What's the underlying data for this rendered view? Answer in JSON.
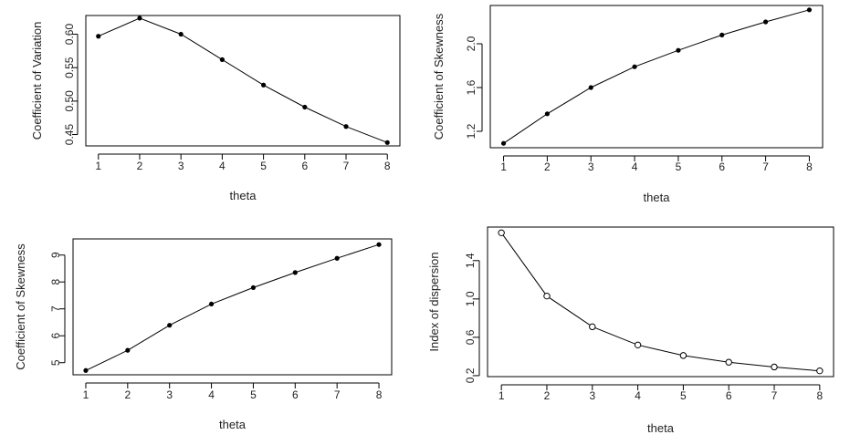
{
  "chart_data": [
    {
      "type": "line",
      "marker": "filled-dot",
      "xlabel": "theta",
      "ylabel": "Coefficient of Variation",
      "x": [
        1,
        2,
        3,
        4,
        5,
        6,
        7,
        8
      ],
      "values": [
        0.597,
        0.624,
        0.6,
        0.562,
        0.524,
        0.491,
        0.462,
        0.438
      ],
      "ylim": [
        0.433,
        0.628
      ],
      "xticks": [
        1,
        2,
        3,
        4,
        5,
        6,
        7,
        8
      ],
      "yticks": [
        0.45,
        0.5,
        0.55,
        0.6
      ],
      "ytick_labels": [
        "0.45",
        "0.50",
        "0.55",
        "0.60"
      ],
      "grid": false
    },
    {
      "type": "line",
      "marker": "filled-dot",
      "xlabel": "theta",
      "ylabel": "Coefficient of Skewness",
      "x": [
        1,
        2,
        3,
        4,
        5,
        6,
        7,
        8
      ],
      "values": [
        1.09,
        1.36,
        1.6,
        1.79,
        1.94,
        2.08,
        2.2,
        2.31
      ],
      "ylim": [
        1.05,
        2.35
      ],
      "xticks": [
        1,
        2,
        3,
        4,
        5,
        6,
        7,
        8
      ],
      "yticks": [
        1.2,
        1.6,
        2.0
      ],
      "ytick_labels": [
        "1.2",
        "1.6",
        "2.0"
      ],
      "grid": false
    },
    {
      "type": "line",
      "marker": "filled-dot",
      "xlabel": "theta",
      "ylabel": "Coefficient of Skewness",
      "x": [
        1,
        2,
        3,
        4,
        5,
        6,
        7,
        8
      ],
      "values": [
        4.71,
        5.46,
        6.39,
        7.18,
        7.79,
        8.35,
        8.88,
        9.39
      ],
      "ylim": [
        4.55,
        9.6
      ],
      "xticks": [
        1,
        2,
        3,
        4,
        5,
        6,
        7,
        8
      ],
      "yticks": [
        5,
        6,
        7,
        8,
        9
      ],
      "ytick_labels": [
        "5",
        "6",
        "7",
        "8",
        "9"
      ],
      "grid": false
    },
    {
      "type": "line",
      "marker": "open-circle",
      "xlabel": "theta",
      "ylabel": "Index of dispersion",
      "x": [
        1,
        2,
        3,
        4,
        5,
        6,
        7,
        8
      ],
      "values": [
        1.69,
        1.03,
        0.71,
        0.52,
        0.41,
        0.34,
        0.29,
        0.25
      ],
      "ylim": [
        0.19,
        1.75
      ],
      "xticks": [
        1,
        2,
        3,
        4,
        5,
        6,
        7,
        8
      ],
      "yticks": [
        0.2,
        0.6,
        1.0,
        1.4
      ],
      "ytick_labels": [
        "0.2",
        "0.6",
        "1.0",
        "1.4"
      ],
      "grid": false
    }
  ]
}
